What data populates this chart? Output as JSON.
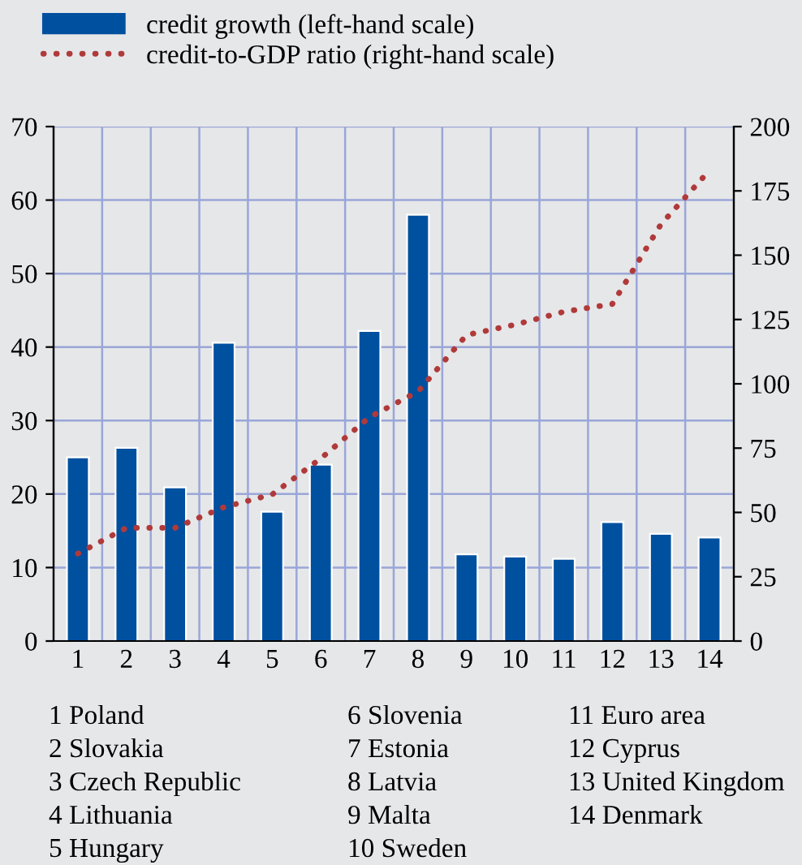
{
  "chart_data": {
    "type": "bar",
    "categories": [
      "1",
      "2",
      "3",
      "4",
      "5",
      "6",
      "7",
      "8",
      "9",
      "10",
      "11",
      "12",
      "13",
      "14"
    ],
    "series": [
      {
        "name": "credit growth (left-hand scale)",
        "color": "#0050a0",
        "values": [
          25,
          26.3,
          20.9,
          40.6,
          17.6,
          24,
          42.2,
          58,
          11.8,
          11.5,
          11.2,
          16.2,
          14.6,
          14.1
        ]
      },
      {
        "name": "credit-to-GDP ratio (right-hand scale)",
        "type": "line",
        "axis": "y2",
        "color": "#b03a3a",
        "line_style": "dotted",
        "values": [
          34,
          44,
          44,
          52,
          57,
          71,
          87,
          97,
          119,
          123,
          128,
          131,
          162,
          183
        ]
      }
    ],
    "ylim": [
      0,
      70
    ],
    "yticks": [
      0,
      10,
      20,
      30,
      40,
      50,
      60,
      70
    ],
    "y2lim": [
      0,
      200
    ],
    "y2ticks": [
      0,
      25,
      50,
      75,
      100,
      125,
      150,
      175,
      200
    ],
    "grid": true,
    "legend": "top left",
    "annotations": [
      "1 Poland",
      "2 Slovakia",
      "3 Czech Republic",
      "4 Lithuania",
      "5 Hungary",
      "6 Slovenia",
      "7 Estonia",
      "8 Latvia",
      "9 Malta",
      "10 Sweden",
      "11 Euro area",
      "12 Cyprus",
      "13 United Kingdom",
      "14 Denmark"
    ]
  }
}
